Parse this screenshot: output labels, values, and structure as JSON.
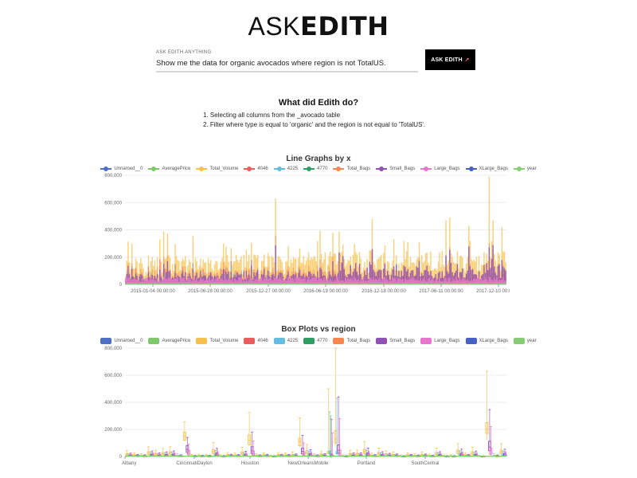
{
  "header": {
    "logo_light": "ASK",
    "logo_bold": "EDITH"
  },
  "search": {
    "label": "ASK EDITH ANYTHING",
    "value": "Show me the data for organic avocados where region is not TotalUS.",
    "button_label": "ASK EDITH",
    "button_icon": "rocket-icon"
  },
  "explanation": {
    "title": "What did Edith do?",
    "steps": [
      "1. Selecting all columns from the _avocado table",
      "2. Filter where type is equal to 'organic' and the region is not equal to 'TotalUS'."
    ]
  },
  "colors": {
    "Unnamed__0": "#4e6fc4",
    "AveragePrice": "#7fc96b",
    "Total_Volume": "#f6c14e",
    "4046": "#eb5c5c",
    "4225": "#64bde0",
    "4770": "#2f9e63",
    "Total_Bags": "#f5874f",
    "Small_Bags": "#9152b3",
    "Large_Bags": "#ea75cd",
    "XLarge_Bags": "#4762c4",
    "year": "#86cd74"
  },
  "chart_data": [
    {
      "type": "line",
      "title": "Line Graphs by x",
      "xlabel": "x",
      "ylabel": "",
      "ylim": [
        0,
        800000
      ],
      "yticks": [
        "0",
        "200,000",
        "400,000",
        "600,000",
        "800,000"
      ],
      "xticks": [
        "2015-01-04 00:00:00",
        "2015-06-28 00:00:00",
        "2015-12-27 00:00:00",
        "2016-06-19 00:00:00",
        "2016-12-18 00:00:00",
        "2017-06-11 00:00:00",
        "2017-12-10 00:00:00"
      ],
      "legend": [
        "Unnamed__0",
        "AveragePrice",
        "Total_Volume",
        "4046",
        "4225",
        "4770",
        "Total_Bags",
        "Small_Bags",
        "Large_Bags",
        "XLarge_Bags",
        "year"
      ],
      "legend_position": "top",
      "grid": true,
      "series_summary": [
        {
          "name": "Total_Volume",
          "typical_range": [
            50000,
            250000
          ],
          "peaks": [
            {
              "x": "2015-07",
              "y": 390000
            },
            {
              "x": "2016-05",
              "y": 630000
            },
            {
              "x": "2017-02",
              "y": 480000
            },
            {
              "x": "2018-02",
              "y": 790000
            }
          ]
        },
        {
          "name": "Total_Bags",
          "typical_range": [
            20000,
            150000
          ]
        },
        {
          "name": "Small_Bags",
          "typical_range": [
            10000,
            120000
          ]
        },
        {
          "name": "Large_Bags",
          "typical_range": [
            5000,
            60000
          ]
        },
        {
          "name": "4225",
          "typical_range": [
            5000,
            150000
          ],
          "peaks": [
            {
              "x": "2018-02",
              "y": 420000
            }
          ]
        },
        {
          "name": "4046",
          "typical_range": [
            1000,
            100000
          ]
        },
        {
          "name": "AveragePrice",
          "typical_range": [
            0,
            3
          ]
        },
        {
          "name": "year",
          "typical_range": [
            2015,
            2018
          ]
        }
      ]
    },
    {
      "type": "box",
      "title": "Box Plots vs region",
      "xlabel": "region",
      "ylabel": "",
      "ylim": [
        0,
        800000
      ],
      "yticks": [
        "0",
        "200,000",
        "400,000",
        "600,000",
        "800,000"
      ],
      "xticks": [
        "Albany",
        "CincinnatiDayton",
        "Houston",
        "NewOrleansMobile",
        "Portland",
        "SouthCentral"
      ],
      "legend": [
        "Unnamed__0",
        "AveragePrice",
        "Total_Volume",
        "4046",
        "4225",
        "4770",
        "Total_Bags",
        "Small_Bags",
        "Large_Bags",
        "XLarge_Bags",
        "year"
      ],
      "legend_position": "top",
      "grid": true,
      "notable_boxes": [
        {
          "region_index": 8,
          "series": "Total_Volume",
          "min": 120000,
          "q1": 120000,
          "median": 150000,
          "q3": 180000,
          "max": 255000
        },
        {
          "region_index": 17,
          "series": "Total_Volume",
          "min": 80000,
          "q1": 85000,
          "median": 120000,
          "q3": 160000,
          "max": 325000
        },
        {
          "region_index": 24,
          "series": "Total_Volume",
          "min": 70000,
          "q1": 80000,
          "median": 110000,
          "q3": 135000,
          "max": 285000
        },
        {
          "region_index": 28,
          "series": "Total_Volume",
          "min": 20000,
          "q1": 20000,
          "median": 30000,
          "q3": 40000,
          "max": 500000
        },
        {
          "region_index": 29,
          "series": "Total_Volume",
          "min": 80000,
          "q1": 100000,
          "median": 130000,
          "q3": 190000,
          "max": 800000
        },
        {
          "region_index": 50,
          "series": "Total_Volume",
          "min": 120000,
          "q1": 170000,
          "median": 200000,
          "q3": 250000,
          "max": 630000
        }
      ]
    }
  ]
}
